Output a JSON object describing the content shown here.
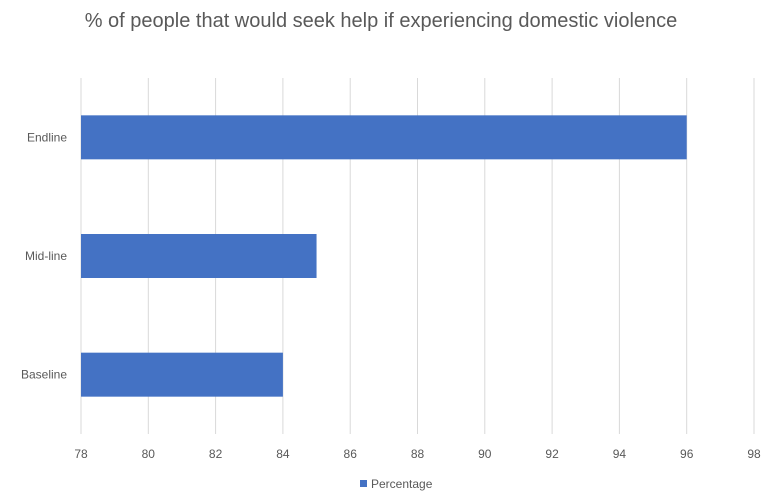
{
  "chart_data": {
    "type": "bar",
    "orientation": "horizontal",
    "title": "% of people that would seek help if experiencing domestic violence",
    "categories": [
      "Endline",
      "Mid-line",
      "Baseline"
    ],
    "series": [
      {
        "name": "Percentage",
        "values": [
          96,
          85,
          84
        ],
        "color": "#4472c4"
      }
    ],
    "xlim": [
      78,
      98
    ],
    "xticks": [
      78,
      80,
      82,
      84,
      86,
      88,
      90,
      92,
      94,
      96,
      98
    ],
    "grid": "vertical",
    "legend": "bottom",
    "xlabel": "",
    "ylabel": ""
  }
}
